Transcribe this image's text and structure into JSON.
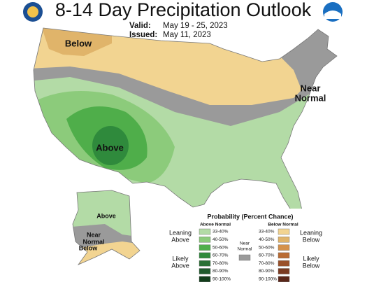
{
  "header": {
    "title": "8-14 Day Precipitation Outlook",
    "valid_label": "Valid:",
    "valid": "May 19 - 25, 2023",
    "issued_label": "Issued:",
    "issued": "May 11, 2023"
  },
  "map": {
    "labels": [
      [
        "Below"
      ],
      [
        "Near",
        "Normal"
      ],
      [
        "Above"
      ],
      [
        "Above"
      ],
      [
        "Near",
        "Normal"
      ],
      [
        "Below"
      ]
    ]
  },
  "legend": {
    "title": "Probability (Percent Chance)",
    "above_header": "Above Normal",
    "below_header": "Below Normal",
    "leaning_above": [
      "Leaning",
      "Above"
    ],
    "likely_above": [
      "Likely",
      "Above"
    ],
    "near": [
      "Near",
      "Normal"
    ],
    "leaning_below": [
      "Leaning",
      "Below"
    ],
    "likely_below": [
      "Likely",
      "Below"
    ],
    "ranges": [
      "33-40%",
      "40-50%",
      "50-60%",
      "60-70%",
      "70-80%",
      "80-90%",
      "90-100%"
    ],
    "above_colors": [
      "#b3dba6",
      "#8ccb7b",
      "#4fae4a",
      "#2f8a3c",
      "#2a6f35",
      "#1f5a2c",
      "#123d1b"
    ],
    "below_colors": [
      "#f2d491",
      "#e0b46a",
      "#d4914b",
      "#b96b33",
      "#99502a",
      "#7a3a21",
      "#5a2619"
    ],
    "near_color": "#9a9a9a"
  }
}
